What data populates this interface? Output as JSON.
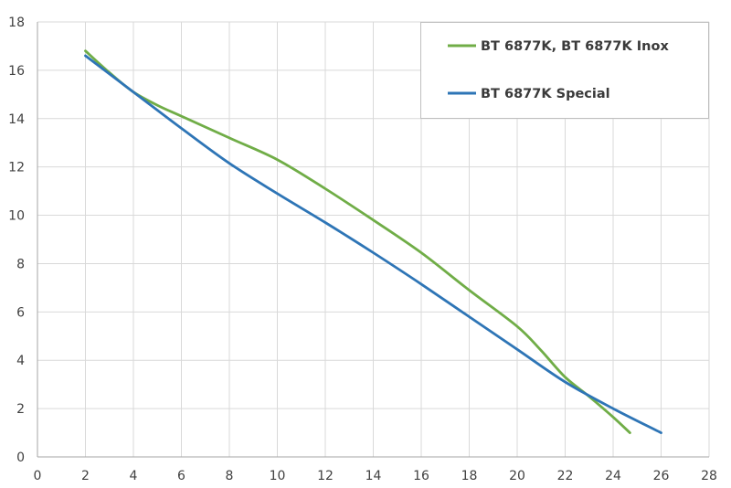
{
  "chart_data": {
    "type": "line",
    "title": "",
    "xlabel": "",
    "ylabel": "",
    "xlim": [
      0,
      28
    ],
    "ylim": [
      0,
      18
    ],
    "x_ticks": [
      0,
      2,
      4,
      6,
      8,
      10,
      12,
      14,
      16,
      18,
      20,
      22,
      24,
      26,
      28
    ],
    "y_ticks": [
      0,
      2,
      4,
      6,
      8,
      10,
      12,
      14,
      16,
      18
    ],
    "grid": true,
    "legend_position": "top-right",
    "series": [
      {
        "name": "BT 6877K, BT 6877K Inox",
        "color": "#70ad47",
        "points": [
          [
            2.0,
            16.8
          ],
          [
            3.0,
            15.9
          ],
          [
            4.0,
            15.1
          ],
          [
            5.0,
            14.55
          ],
          [
            6.0,
            14.1
          ],
          [
            8.0,
            13.2
          ],
          [
            10.0,
            12.3
          ],
          [
            12.0,
            11.1
          ],
          [
            14.0,
            9.8
          ],
          [
            16.0,
            8.45
          ],
          [
            18.0,
            6.9
          ],
          [
            20.0,
            5.4
          ],
          [
            21.0,
            4.4
          ],
          [
            22.0,
            3.3
          ],
          [
            23.0,
            2.5
          ],
          [
            24.0,
            1.65
          ],
          [
            24.7,
            1.0
          ]
        ]
      },
      {
        "name": "BT 6877K Special",
        "color": "#2e75b6",
        "points": [
          [
            2.0,
            16.6
          ],
          [
            4.0,
            15.1
          ],
          [
            6.0,
            13.6
          ],
          [
            8.0,
            12.15
          ],
          [
            10.0,
            10.9
          ],
          [
            12.0,
            9.7
          ],
          [
            14.0,
            8.45
          ],
          [
            16.0,
            7.15
          ],
          [
            18.0,
            5.8
          ],
          [
            20.0,
            4.45
          ],
          [
            22.0,
            3.1
          ],
          [
            24.0,
            2.0
          ],
          [
            26.0,
            1.0
          ]
        ]
      }
    ]
  }
}
